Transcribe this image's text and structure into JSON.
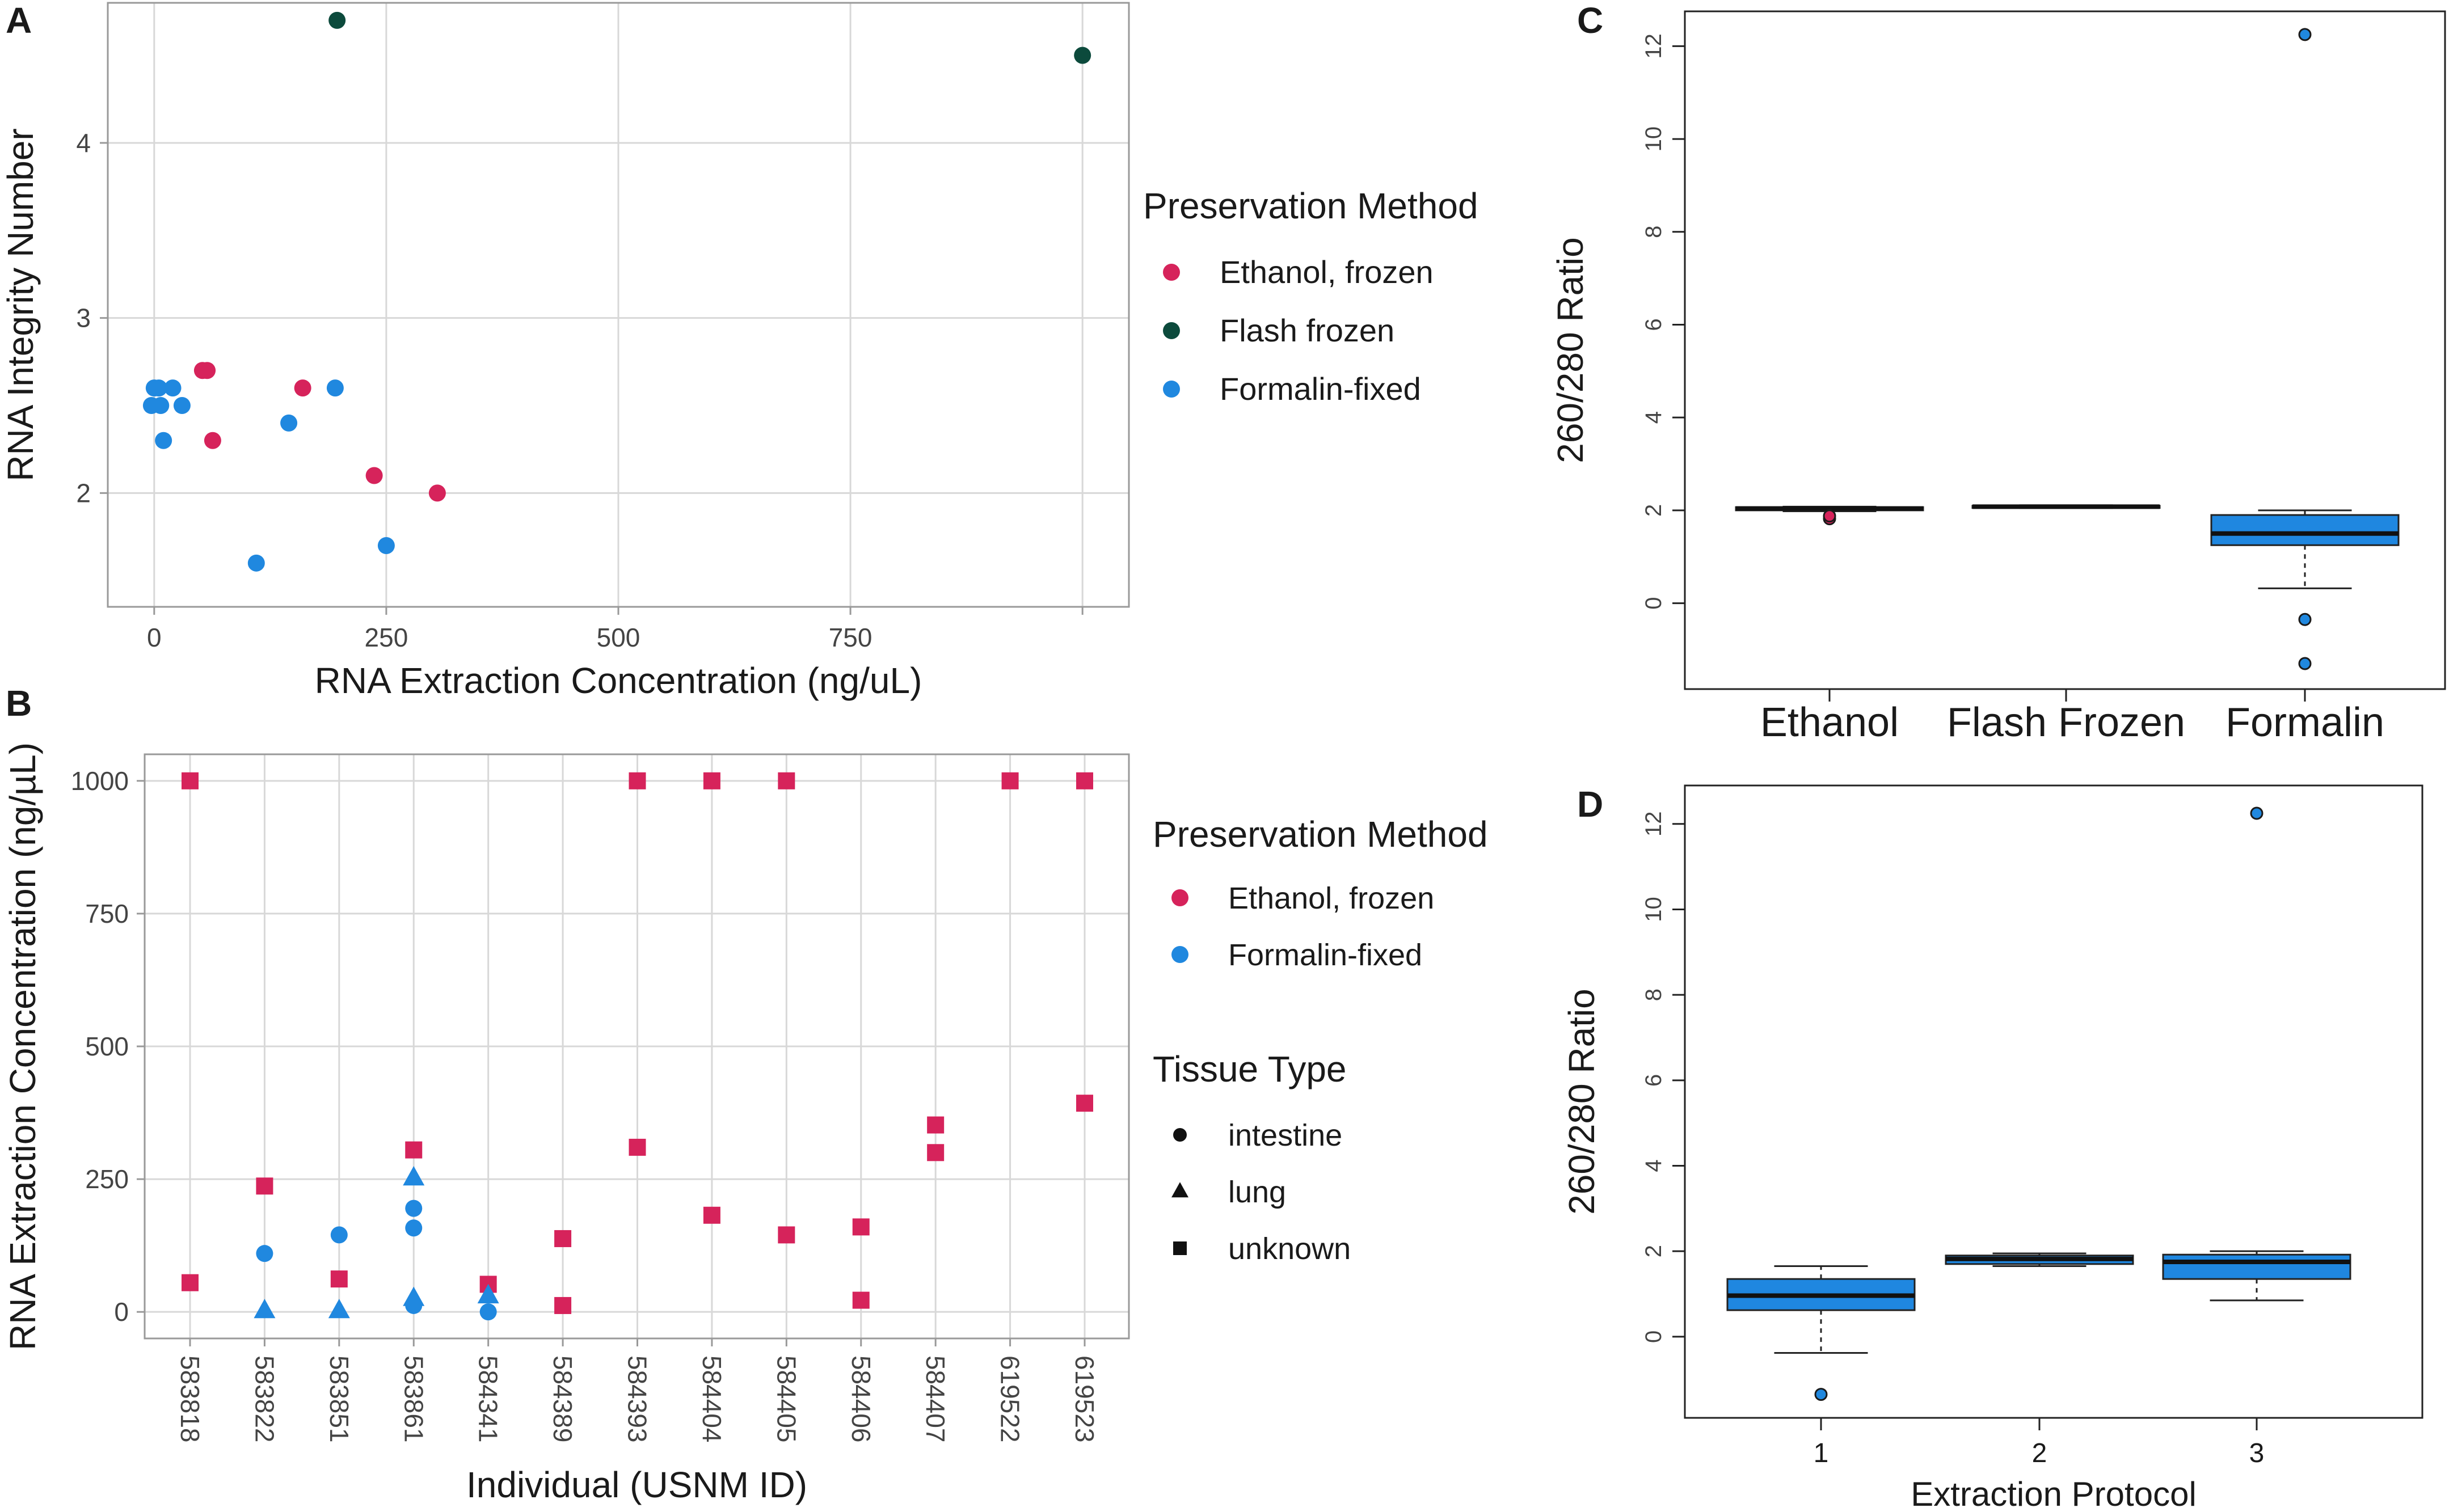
{
  "colors": {
    "ethanol": "#d6235b",
    "flash": "#0c4a3c",
    "formalin": "#2088df",
    "box_fill": "#1f87e0",
    "grid": "#d8d8d8",
    "axis": "#999999",
    "text": "#1a1a1a",
    "tick_text": "#444444"
  },
  "chart_data": [
    {
      "panel": "A",
      "type": "scatter",
      "xlabel": "RNA Extraction Concentration (ng/uL)",
      "ylabel": "RNA Integrity Number",
      "xlim": [
        -50,
        1050
      ],
      "ylim": [
        1.35,
        4.8
      ],
      "xticks": [
        0,
        250,
        500,
        750
      ],
      "yticks": [
        2,
        3,
        4
      ],
      "xtick_labels": [
        "0",
        "250",
        "500",
        "750"
      ],
      "ytick_labels": [
        "2",
        "3",
        "4"
      ],
      "extra_vgrid": [
        1000
      ],
      "legend": {
        "title": "Preservation Method",
        "position": "right",
        "entries": [
          {
            "label": "Ethanol, frozen",
            "color_key": "ethanol"
          },
          {
            "label": "Flash frozen",
            "color_key": "flash"
          },
          {
            "label": "Formalin-fixed",
            "color_key": "formalin"
          }
        ]
      },
      "series": [
        {
          "name": "Ethanol, frozen",
          "color_key": "ethanol",
          "points": [
            [
              52,
              2.7
            ],
            [
              57,
              2.7
            ],
            [
              63,
              2.3
            ],
            [
              160,
              2.6
            ],
            [
              237,
              2.1
            ],
            [
              305,
              2.0
            ]
          ]
        },
        {
          "name": "Flash frozen",
          "color_key": "flash",
          "points": [
            [
              197,
              4.7
            ],
            [
              1000,
              4.5
            ]
          ]
        },
        {
          "name": "Formalin-fixed",
          "color_key": "formalin",
          "points": [
            [
              0,
              2.6
            ],
            [
              5,
              2.6
            ],
            [
              -3,
              2.5
            ],
            [
              7,
              2.5
            ],
            [
              20,
              2.6
            ],
            [
              30,
              2.5
            ],
            [
              10,
              2.3
            ],
            [
              145,
              2.4
            ],
            [
              195,
              2.6
            ],
            [
              110,
              1.6
            ],
            [
              250,
              1.7
            ]
          ]
        }
      ]
    },
    {
      "panel": "B",
      "type": "scatter",
      "xlabel": "Individual (USNM ID)",
      "ylabel": "RNA Extraction Concentration (ng/µL)",
      "categories": [
        "583818",
        "583822",
        "583851",
        "583861",
        "584341",
        "584389",
        "584393",
        "584404",
        "584405",
        "584406",
        "584407",
        "619522",
        "619523"
      ],
      "ylim": [
        -50,
        1050
      ],
      "yticks": [
        0,
        250,
        500,
        750,
        1000
      ],
      "ytick_labels": [
        "0",
        "250",
        "500",
        "750",
        "1000"
      ],
      "legend_preservation": {
        "title": "Preservation Method",
        "entries": [
          {
            "label": "Ethanol, frozen",
            "color_key": "ethanol"
          },
          {
            "label": "Formalin-fixed",
            "color_key": "formalin"
          }
        ]
      },
      "legend_tissue": {
        "title": "Tissue Type",
        "entries": [
          {
            "label": "intestine",
            "shape": "circle"
          },
          {
            "label": "lung",
            "shape": "triangle"
          },
          {
            "label": "unknown",
            "shape": "square"
          }
        ]
      },
      "points": [
        {
          "cat": 0,
          "y": 1000,
          "method": "ethanol",
          "tissue": "unknown"
        },
        {
          "cat": 0,
          "y": 55,
          "method": "ethanol",
          "tissue": "unknown"
        },
        {
          "cat": 1,
          "y": 237,
          "method": "ethanol",
          "tissue": "unknown"
        },
        {
          "cat": 1,
          "y": 110,
          "method": "formalin",
          "tissue": "intestine"
        },
        {
          "cat": 1,
          "y": 2,
          "method": "formalin",
          "tissue": "lung"
        },
        {
          "cat": 2,
          "y": 62,
          "method": "ethanol",
          "tissue": "unknown"
        },
        {
          "cat": 2,
          "y": 145,
          "method": "formalin",
          "tissue": "intestine"
        },
        {
          "cat": 2,
          "y": 2,
          "method": "formalin",
          "tissue": "lung"
        },
        {
          "cat": 3,
          "y": 305,
          "method": "ethanol",
          "tissue": "unknown"
        },
        {
          "cat": 3,
          "y": 252,
          "method": "formalin",
          "tissue": "lung"
        },
        {
          "cat": 3,
          "y": 195,
          "method": "formalin",
          "tissue": "intestine"
        },
        {
          "cat": 3,
          "y": 158,
          "method": "formalin",
          "tissue": "intestine"
        },
        {
          "cat": 3,
          "y": 25,
          "method": "formalin",
          "tissue": "lung"
        },
        {
          "cat": 3,
          "y": 12,
          "method": "formalin",
          "tissue": "intestine"
        },
        {
          "cat": 4,
          "y": 52,
          "method": "ethanol",
          "tissue": "unknown"
        },
        {
          "cat": 4,
          "y": 30,
          "method": "formalin",
          "tissue": "lung"
        },
        {
          "cat": 4,
          "y": 0,
          "method": "formalin",
          "tissue": "intestine"
        },
        {
          "cat": 5,
          "y": 138,
          "method": "ethanol",
          "tissue": "unknown"
        },
        {
          "cat": 5,
          "y": 12,
          "method": "ethanol",
          "tissue": "unknown"
        },
        {
          "cat": 6,
          "y": 1000,
          "method": "ethanol",
          "tissue": "unknown"
        },
        {
          "cat": 6,
          "y": 310,
          "method": "ethanol",
          "tissue": "unknown"
        },
        {
          "cat": 7,
          "y": 1000,
          "method": "ethanol",
          "tissue": "unknown"
        },
        {
          "cat": 7,
          "y": 182,
          "method": "ethanol",
          "tissue": "unknown"
        },
        {
          "cat": 8,
          "y": 1000,
          "method": "ethanol",
          "tissue": "unknown"
        },
        {
          "cat": 8,
          "y": 145,
          "method": "ethanol",
          "tissue": "unknown"
        },
        {
          "cat": 9,
          "y": 160,
          "method": "ethanol",
          "tissue": "unknown"
        },
        {
          "cat": 9,
          "y": 22,
          "method": "ethanol",
          "tissue": "unknown"
        },
        {
          "cat": 10,
          "y": 352,
          "method": "ethanol",
          "tissue": "unknown"
        },
        {
          "cat": 10,
          "y": 300,
          "method": "ethanol",
          "tissue": "unknown"
        },
        {
          "cat": 11,
          "y": 1000,
          "method": "ethanol",
          "tissue": "unknown"
        },
        {
          "cat": 12,
          "y": 1000,
          "method": "ethanol",
          "tissue": "unknown"
        },
        {
          "cat": 12,
          "y": 393,
          "method": "ethanol",
          "tissue": "unknown"
        }
      ]
    },
    {
      "panel": "C",
      "type": "boxplot",
      "ylabel": "260/280 Ratio",
      "categories": [
        "Ethanol",
        "Flash Frozen",
        "Formalin"
      ],
      "ylim": [
        -1.85,
        12.75
      ],
      "yticks": [
        0,
        2,
        4,
        6,
        8,
        10,
        12
      ],
      "ytick_labels": [
        "0",
        "2",
        "4",
        "6",
        "8",
        "10",
        "12"
      ],
      "boxes": [
        {
          "q1": 2.0,
          "median": 2.04,
          "q3": 2.07,
          "whisker_low": 1.98,
          "whisker_high": 2.08,
          "outliers": [
            1.82,
            1.88
          ],
          "outlier_color_key": "ethanol"
        },
        {
          "q1": 2.06,
          "median": 2.08,
          "q3": 2.1,
          "whisker_low": 2.05,
          "whisker_high": 2.11,
          "outliers": [],
          "outlier_color_key": "formalin"
        },
        {
          "q1": 1.25,
          "median": 1.5,
          "q3": 1.9,
          "whisker_low": 0.32,
          "whisker_high": 2.0,
          "outliers": [
            12.25,
            -0.35,
            -1.3
          ],
          "outlier_color_key": "formalin"
        }
      ]
    },
    {
      "panel": "D",
      "type": "boxplot",
      "xlabel": "Extraction Protocol",
      "ylabel": "260/280 Ratio",
      "categories": [
        "1",
        "2",
        "3"
      ],
      "ylim": [
        -1.9,
        12.9
      ],
      "yticks": [
        0,
        2,
        4,
        6,
        8,
        10,
        12
      ],
      "ytick_labels": [
        "0",
        "2",
        "4",
        "6",
        "8",
        "10",
        "12"
      ],
      "boxes": [
        {
          "q1": 0.62,
          "median": 0.96,
          "q3": 1.35,
          "whisker_low": -0.38,
          "whisker_high": 1.65,
          "outliers": [
            -1.35
          ],
          "outlier_color_key": "formalin"
        },
        {
          "q1": 1.7,
          "median": 1.82,
          "q3": 1.9,
          "whisker_low": 1.65,
          "whisker_high": 1.95,
          "outliers": [],
          "outlier_color_key": "formalin"
        },
        {
          "q1": 1.35,
          "median": 1.75,
          "q3": 1.92,
          "whisker_low": 0.85,
          "whisker_high": 2.0,
          "outliers": [
            12.25
          ],
          "outlier_color_key": "formalin"
        }
      ]
    }
  ]
}
